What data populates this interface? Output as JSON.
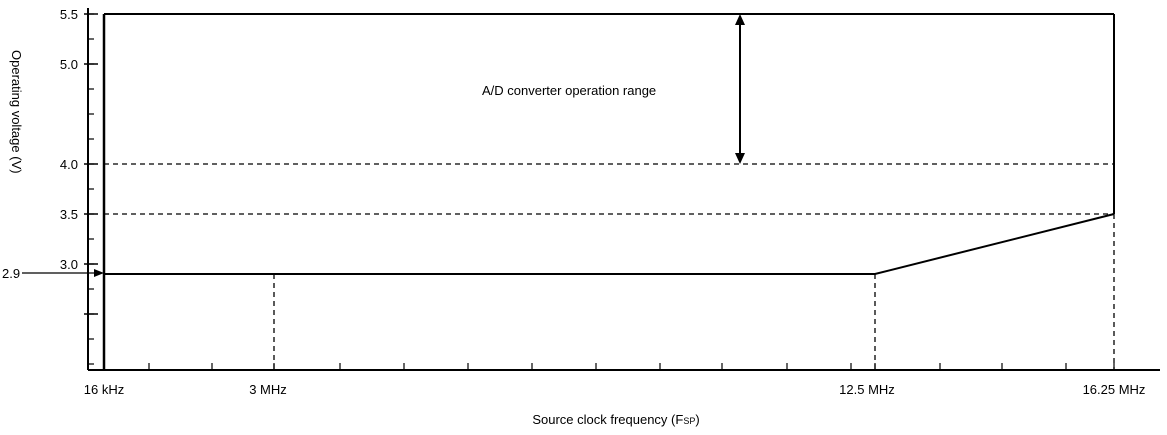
{
  "chart_data": {
    "type": "line",
    "xlabel": "Source clock frequency (F",
    "xlabel_sub": "SP",
    "xlabel_end": ")",
    "ylabel": "Operating voltage (V)",
    "x_ticks": [
      "16 kHz",
      "3 MHz",
      "12.5 MHz",
      "16.25 MHz"
    ],
    "y_ticks": [
      "5.5",
      "5.0",
      "4.0",
      "3.5",
      "3.0"
    ],
    "y_marker": "2.9",
    "ylim": [
      2.4,
      5.5
    ],
    "x_points_mhz": [
      0.016,
      3,
      12.5,
      16.25
    ],
    "operating_boundary": {
      "x": [
        0.016,
        12.5,
        16.25
      ],
      "y": [
        2.9,
        2.9,
        3.5
      ]
    },
    "upper_limit": 5.5,
    "dashed_levels": [
      4.0,
      3.5
    ],
    "annotation": {
      "text": "A/D converter operation range",
      "from": 4.0,
      "to": 5.5
    },
    "grid": false
  }
}
